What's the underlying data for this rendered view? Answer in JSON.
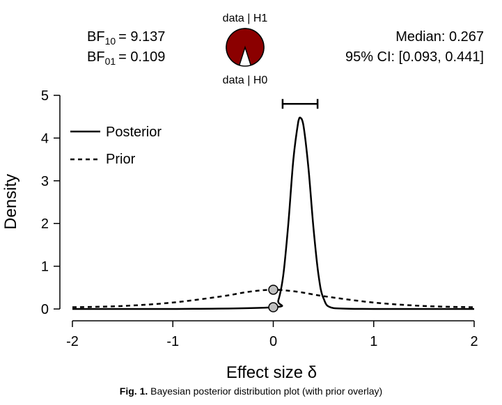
{
  "header": {
    "bf10": {
      "prefix": "BF",
      "sub": "10",
      "value": "= 9.137"
    },
    "bf01": {
      "prefix": "BF",
      "sub": "01",
      "value": "= 0.109"
    },
    "median": "Median: 0.267",
    "ci": "95% CI: [0.093, 0.441]",
    "pie_top_label": "data | H1",
    "pie_bottom_label": "data | H0",
    "pie_h1_fraction": 0.9013,
    "pie_h1_color": "#8b0000"
  },
  "chart_data": {
    "type": "line",
    "xlabel": "Effect size δ",
    "ylabel": "Density",
    "xlim": [
      -2,
      2
    ],
    "ylim": [
      0,
      5
    ],
    "x_ticks": [
      "-2",
      "-1",
      "0",
      "1",
      "2"
    ],
    "y_ticks": [
      "0",
      "1",
      "2",
      "3",
      "4",
      "5"
    ],
    "grid": false,
    "legend_position": "top-left",
    "series": [
      {
        "name": "Posterior",
        "style": "solid",
        "x": [
          -2,
          -1,
          0,
          0.05,
          0.1,
          0.15,
          0.2,
          0.25,
          0.267,
          0.3,
          0.35,
          0.4,
          0.45,
          0.5,
          0.6,
          1,
          2
        ],
        "y": [
          0,
          0,
          0.04,
          0.2,
          0.8,
          2.0,
          3.5,
          4.4,
          4.48,
          4.3,
          3.3,
          1.9,
          0.8,
          0.25,
          0.02,
          0,
          0
        ]
      },
      {
        "name": "Prior",
        "style": "dashed",
        "x": [
          -2,
          -1.5,
          -1,
          -0.5,
          -0.25,
          0,
          0.25,
          0.5,
          1,
          1.5,
          2
        ],
        "y": [
          0.04,
          0.07,
          0.15,
          0.3,
          0.4,
          0.45,
          0.4,
          0.3,
          0.15,
          0.07,
          0.04
        ]
      }
    ],
    "points_at_zero": [
      {
        "series": "Prior",
        "x": 0,
        "y": 0.45
      },
      {
        "series": "Posterior",
        "x": 0,
        "y": 0.04
      }
    ],
    "credible_interval": {
      "lower": 0.093,
      "upper": 0.441,
      "y": 4.8
    }
  },
  "caption": {
    "label": "Fig. 1.",
    "text": " Bayesian posterior distribution plot (with prior overlay)"
  }
}
